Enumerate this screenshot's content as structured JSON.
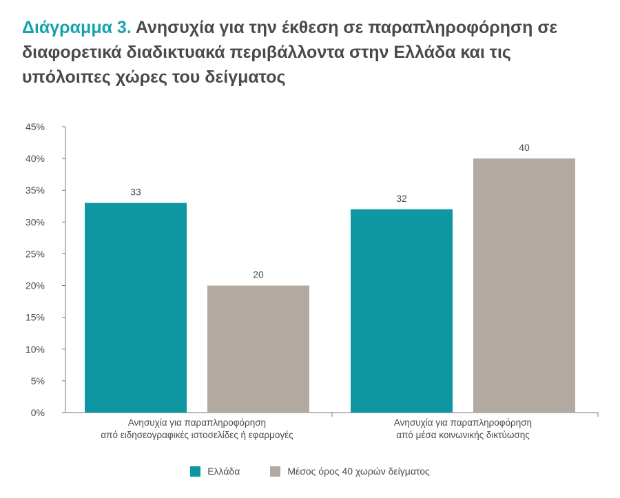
{
  "header": {
    "prefix": "Διάγραμμα 3.",
    "title": "Ανησυχία για την έκθεση σε παραπληροφόρηση σε διαφορετικά διαδικτυακά περιβάλλοντα στην Ελλάδα και τις υπόλοιπες χώρες του δείγματος"
  },
  "chart_data": {
    "type": "bar",
    "title": "Διάγραμμα 3. Ανησυχία για την έκθεση σε παραπληροφόρηση σε διαφορετικά διαδικτυακά περιβάλλοντα στην Ελλάδα και τις υπόλοιπες χώρες του δείγματος",
    "categories": [
      [
        "Ανησυχία για παραπληροφόρηση",
        "από ειδησεογραφικές ιστοσελίδες ή εφαρμογές"
      ],
      [
        "Ανησυχία για παραπληροφόρηση",
        "από μέσα κοινωνικής δικτύωσης"
      ]
    ],
    "series": [
      {
        "name": "Ελλάδα",
        "color": "#0e96a2",
        "values": [
          33,
          32
        ]
      },
      {
        "name": "Μέσος όρος 40 χωρών δείγματος",
        "color": "#b2aaa0",
        "values": [
          20,
          40
        ]
      }
    ],
    "xlabel": "",
    "ylabel": "",
    "ylim": [
      0,
      45
    ],
    "yticks": [
      0,
      5,
      10,
      15,
      20,
      25,
      30,
      35,
      40,
      45
    ],
    "ytick_labels": [
      "0%",
      "5%",
      "10%",
      "15%",
      "20%",
      "25%",
      "30%",
      "35%",
      "40%",
      "45%"
    ],
    "grid": false,
    "legend_position": "bottom-center"
  }
}
